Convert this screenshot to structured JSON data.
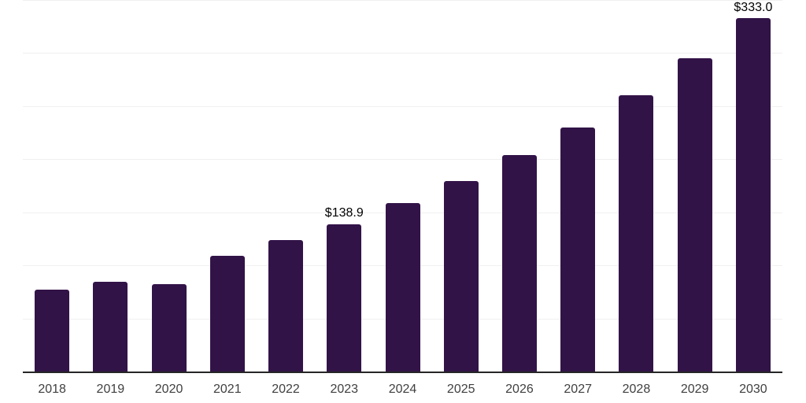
{
  "chart_data": {
    "type": "bar",
    "title": "",
    "xlabel": "",
    "ylabel": "",
    "categories": [
      "2018",
      "2019",
      "2020",
      "2021",
      "2022",
      "2023",
      "2024",
      "2025",
      "2026",
      "2027",
      "2028",
      "2029",
      "2030"
    ],
    "values": [
      77.4,
      84.8,
      82.6,
      109.2,
      124.1,
      138.9,
      158.9,
      179.7,
      204.1,
      230.0,
      260.4,
      295.2,
      333.0
    ],
    "data_labels": [
      {
        "category": "2023",
        "text": "$138.9"
      },
      {
        "category": "2030",
        "text": "$333.0"
      }
    ],
    "ylim": [
      0,
      350
    ],
    "grid_step": 50,
    "grid": "horizontal-only",
    "y_axis_labels_visible": false,
    "legend": "none",
    "colors": {
      "bar": "#321348",
      "axis": "#262626",
      "tick_label": "#404040",
      "value_label": "#000000",
      "gridline": "#f0f0f0",
      "background": "#ffffff"
    }
  }
}
